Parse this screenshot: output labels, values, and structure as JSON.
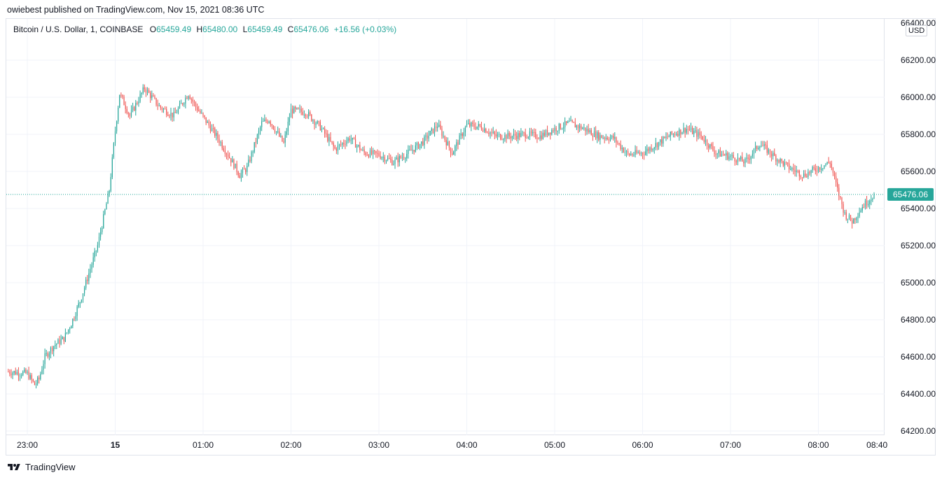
{
  "header": {
    "publisher_line": "owiebest published on TradingView.com, Nov 15, 2021 08:36 UTC"
  },
  "legend": {
    "symbol": "Bitcoin / U.S. Dollar, 1, COINBASE",
    "o_label": "O",
    "o_value": "65459.49",
    "h_label": "H",
    "h_value": "65480.00",
    "l_label": "L",
    "l_value": "65459.49",
    "c_label": "C",
    "c_value": "65476.06",
    "change": "+16.56 (+0.03%)"
  },
  "currency_button": "USD",
  "footer": {
    "brand": "TradingView"
  },
  "colors": {
    "up": "#26a69a",
    "down": "#ef5350",
    "grid": "#f0f3fa",
    "price_tag": "#26a69a"
  },
  "chart_data": {
    "type": "candlestick",
    "title": "Bitcoin / U.S. Dollar, 1, COINBASE",
    "interval": "1 minute",
    "ylim": [
      64150,
      66400
    ],
    "y_ticks": [
      64200,
      64400,
      64600,
      64800,
      65000,
      65200,
      65400,
      65600,
      65800,
      66000,
      66200
    ],
    "y_tick_labels": [
      "64200.00",
      "64400.00",
      "64600.00",
      "64800.00",
      "65000.00",
      "65200.00",
      "65400.00",
      "65600.00",
      "65800.00",
      "66000.00",
      "66200.00"
    ],
    "y_top_label": "66400.00",
    "x_ticks": [
      "23:00",
      "15",
      "01:00",
      "02:00",
      "03:00",
      "04:00",
      "05:00",
      "06:00",
      "07:00",
      "08:00",
      "08:40"
    ],
    "x_tick_minutes": [
      0,
      60,
      120,
      180,
      240,
      300,
      360,
      420,
      480,
      540,
      580
    ],
    "last_price": 65476.06,
    "last_price_label": "65476.06",
    "price_path_anchors": [
      [
        -13,
        64520
      ],
      [
        0,
        64510
      ],
      [
        5,
        64450
      ],
      [
        8,
        64480
      ],
      [
        12,
        64600
      ],
      [
        18,
        64660
      ],
      [
        25,
        64700
      ],
      [
        30,
        64780
      ],
      [
        36,
        64900
      ],
      [
        42,
        65050
      ],
      [
        48,
        65200
      ],
      [
        52,
        65350
      ],
      [
        56,
        65500
      ],
      [
        60,
        65820
      ],
      [
        63,
        66020
      ],
      [
        70,
        65900
      ],
      [
        80,
        66050
      ],
      [
        90,
        65950
      ],
      [
        100,
        65900
      ],
      [
        110,
        66020
      ],
      [
        115,
        65950
      ],
      [
        130,
        65780
      ],
      [
        140,
        65650
      ],
      [
        145,
        65580
      ],
      [
        150,
        65620
      ],
      [
        160,
        65860
      ],
      [
        165,
        65880
      ],
      [
        175,
        65750
      ],
      [
        180,
        65930
      ],
      [
        190,
        65920
      ],
      [
        200,
        65840
      ],
      [
        210,
        65720
      ],
      [
        220,
        65780
      ],
      [
        230,
        65700
      ],
      [
        240,
        65690
      ],
      [
        250,
        65650
      ],
      [
        260,
        65700
      ],
      [
        270,
        65760
      ],
      [
        280,
        65850
      ],
      [
        290,
        65700
      ],
      [
        300,
        65850
      ],
      [
        310,
        65840
      ],
      [
        320,
        65790
      ],
      [
        330,
        65790
      ],
      [
        340,
        65800
      ],
      [
        350,
        65790
      ],
      [
        360,
        65830
      ],
      [
        370,
        65860
      ],
      [
        380,
        65830
      ],
      [
        390,
        65790
      ],
      [
        400,
        65780
      ],
      [
        410,
        65690
      ],
      [
        420,
        65700
      ],
      [
        430,
        65750
      ],
      [
        440,
        65800
      ],
      [
        450,
        65830
      ],
      [
        460,
        65790
      ],
      [
        470,
        65700
      ],
      [
        480,
        65680
      ],
      [
        490,
        65650
      ],
      [
        500,
        65750
      ],
      [
        510,
        65680
      ],
      [
        520,
        65620
      ],
      [
        530,
        65580
      ],
      [
        540,
        65620
      ],
      [
        548,
        65650
      ],
      [
        553,
        65500
      ],
      [
        558,
        65370
      ],
      [
        563,
        65330
      ],
      [
        570,
        65410
      ],
      [
        578,
        65476
      ]
    ]
  }
}
